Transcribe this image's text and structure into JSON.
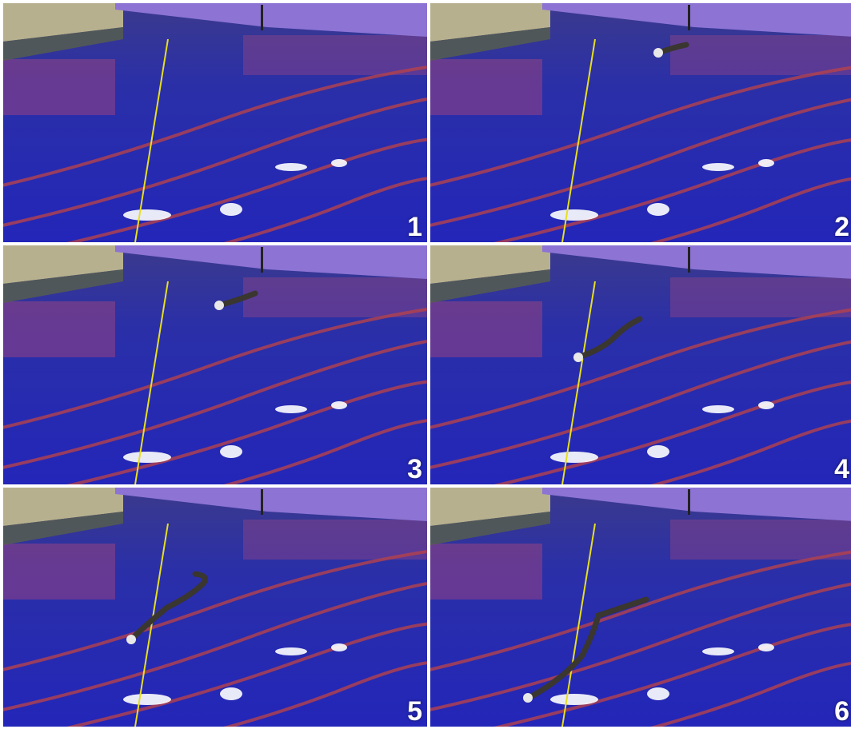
{
  "panels": [
    {
      "label": "1",
      "robot": "none"
    },
    {
      "label": "2",
      "robot": "distant"
    },
    {
      "label": "3",
      "robot": "distant-wake"
    },
    {
      "label": "4",
      "robot": "mid"
    },
    {
      "label": "5",
      "robot": "near"
    },
    {
      "label": "6",
      "robot": "closest"
    }
  ],
  "colors": {
    "water": "#2b2fa6",
    "water_dark": "#1c1f7a",
    "bridge": "#8e74d6",
    "wall": "#b9b391",
    "lane_line": "#b0404a",
    "tether": "#e8e021",
    "robot": "#3a3630"
  }
}
